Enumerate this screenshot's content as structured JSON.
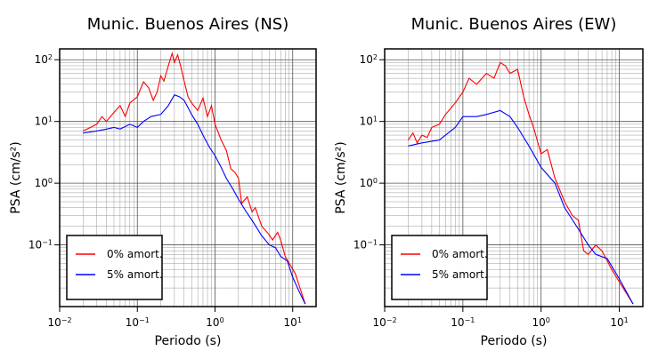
{
  "chart_data": [
    {
      "type": "line",
      "title": "Munic. Buenos Aires (NS)",
      "x_label": "Periodo (s)",
      "y_label": "PSA (cm/s²)",
      "xscale": "log",
      "yscale": "log",
      "grid": true,
      "legend": "lower left",
      "xlim": [
        0.01,
        20
      ],
      "ylim": [
        0.01,
        150
      ],
      "xticks": [
        {
          "value": 0.01,
          "label": "10",
          "exponent": "−2"
        },
        {
          "value": 0.1,
          "label": "10",
          "exponent": "−1"
        },
        {
          "value": 1,
          "label": "10",
          "exponent": "0"
        },
        {
          "value": 10,
          "label": "10",
          "exponent": "1"
        }
      ],
      "yticks": [
        {
          "value": 0.1,
          "label": "10",
          "exponent": "−1"
        },
        {
          "value": 1,
          "label": "10",
          "exponent": "0"
        },
        {
          "value": 10,
          "label": "10",
          "exponent": "1"
        },
        {
          "value": 100,
          "label": "10",
          "exponent": "2"
        }
      ],
      "series": [
        {
          "name": "0% amort.",
          "color": "#ff0000",
          "x": [
            0.02,
            0.025,
            0.03,
            0.035,
            0.04,
            0.05,
            0.06,
            0.07,
            0.08,
            0.1,
            0.12,
            0.14,
            0.16,
            0.18,
            0.2,
            0.22,
            0.25,
            0.28,
            0.3,
            0.33,
            0.36,
            0.4,
            0.45,
            0.5,
            0.6,
            0.7,
            0.8,
            0.9,
            1.0,
            1.2,
            1.4,
            1.6,
            1.8,
            2.0,
            2.2,
            2.6,
            3.0,
            3.3,
            4.0,
            4.9,
            5.5,
            6.4,
            7.0,
            8.0,
            10.8,
            14.5
          ],
          "values": [
            7,
            8,
            9,
            12,
            10,
            14,
            18,
            12,
            20,
            25,
            44,
            35,
            22,
            30,
            55,
            45,
            80,
            127,
            90,
            120,
            80,
            45,
            25,
            20,
            15,
            24,
            12,
            18,
            9,
            5,
            3.4,
            1.7,
            1.5,
            1.2,
            0.47,
            0.6,
            0.34,
            0.4,
            0.2,
            0.15,
            0.12,
            0.16,
            0.12,
            0.065,
            0.034,
            0.011
          ]
        },
        {
          "name": "5% amort.",
          "color": "#0000ff",
          "x": [
            0.02,
            0.03,
            0.04,
            0.05,
            0.06,
            0.08,
            0.1,
            0.12,
            0.15,
            0.2,
            0.25,
            0.3,
            0.35,
            0.4,
            0.5,
            0.6,
            0.7,
            0.85,
            1.0,
            1.2,
            1.4,
            1.7,
            2.0,
            2.5,
            3.0,
            4.0,
            5.0,
            6.0,
            7.0,
            8.5,
            10.0,
            12.0,
            14.5
          ],
          "values": [
            6.5,
            7,
            7.5,
            8,
            7.5,
            9,
            8,
            10,
            12,
            13,
            18,
            27,
            25,
            22,
            13,
            9,
            6,
            3.8,
            2.8,
            1.8,
            1.2,
            0.8,
            0.55,
            0.35,
            0.25,
            0.14,
            0.1,
            0.09,
            0.065,
            0.055,
            0.03,
            0.018,
            0.011
          ]
        }
      ]
    },
    {
      "type": "line",
      "title": "Munic. Buenos Aires (EW)",
      "x_label": "Periodo (s)",
      "y_label": "PSA (cm/s²)",
      "xscale": "log",
      "yscale": "log",
      "grid": true,
      "legend": "lower left",
      "xlim": [
        0.01,
        20
      ],
      "ylim": [
        0.01,
        150
      ],
      "xticks": [
        {
          "value": 0.01,
          "label": "10",
          "exponent": "−2"
        },
        {
          "value": 0.1,
          "label": "10",
          "exponent": "−1"
        },
        {
          "value": 1,
          "label": "10",
          "exponent": "0"
        },
        {
          "value": 10,
          "label": "10",
          "exponent": "1"
        }
      ],
      "yticks": [
        {
          "value": 0.1,
          "label": "10",
          "exponent": "−1"
        },
        {
          "value": 1,
          "label": "10",
          "exponent": "0"
        },
        {
          "value": 10,
          "label": "10",
          "exponent": "1"
        },
        {
          "value": 100,
          "label": "10",
          "exponent": "2"
        }
      ],
      "series": [
        {
          "name": "0% amort.",
          "color": "#ff0000",
          "x": [
            0.02,
            0.023,
            0.026,
            0.03,
            0.035,
            0.04,
            0.05,
            0.06,
            0.08,
            0.1,
            0.12,
            0.15,
            0.2,
            0.25,
            0.3,
            0.35,
            0.4,
            0.5,
            0.6,
            0.7,
            0.8,
            1.0,
            1.2,
            1.5,
            2.0,
            2.5,
            3.0,
            3.5,
            4.0,
            5.0,
            6.0,
            8.0,
            10.0,
            15.0
          ],
          "values": [
            5,
            6.5,
            4.5,
            6,
            5.5,
            8,
            9,
            13,
            20,
            30,
            50,
            40,
            60,
            50,
            90,
            80,
            60,
            70,
            25,
            13,
            8,
            3,
            3.5,
            1.2,
            0.5,
            0.3,
            0.25,
            0.08,
            0.07,
            0.1,
            0.08,
            0.04,
            0.025,
            0.011
          ]
        },
        {
          "name": "5% amort.",
          "color": "#0000ff",
          "x": [
            0.02,
            0.03,
            0.05,
            0.08,
            0.1,
            0.15,
            0.2,
            0.3,
            0.4,
            0.5,
            0.7,
            1.0,
            1.5,
            2.0,
            3.0,
            4.0,
            5.0,
            7.0,
            10.0,
            15.0
          ],
          "values": [
            4,
            4.5,
            5,
            8,
            12,
            12,
            13,
            15,
            12,
            8,
            4,
            1.8,
            1.0,
            0.4,
            0.18,
            0.1,
            0.07,
            0.06,
            0.028,
            0.011
          ]
        }
      ]
    }
  ]
}
